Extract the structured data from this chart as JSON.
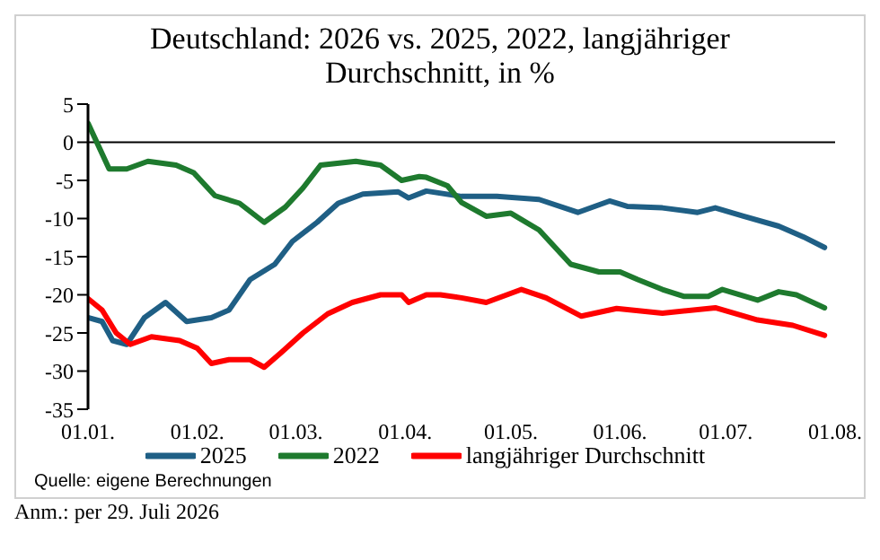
{
  "chart_data": {
    "type": "line",
    "title": "Deutschland: 2026 vs. 2025, 2022, langjähriger Durchschnitt, in %",
    "xlim": [
      "--01-01",
      "--08-01"
    ],
    "xticks": [
      {
        "value": "--01-01",
        "label": "01.01."
      },
      {
        "value": "--02-01",
        "label": "01.02."
      },
      {
        "value": "--03-01",
        "label": "01.03."
      },
      {
        "value": "--04-01",
        "label": "01.04."
      },
      {
        "value": "--05-01",
        "label": "01.05."
      },
      {
        "value": "--06-01",
        "label": "01.06."
      },
      {
        "value": "--07-01",
        "label": "01.07."
      },
      {
        "value": "--08-01",
        "label": "01.08."
      }
    ],
    "ylim": [
      -35,
      5
    ],
    "yticks": [
      -35,
      -30,
      -25,
      -20,
      -15,
      -10,
      -5,
      0,
      5
    ],
    "series": [
      {
        "name": "2025",
        "color": "#1f5f85",
        "x": [
          "--01-01",
          "--01-05",
          "--01-08",
          "--01-12",
          "--01-17",
          "--01-23",
          "--01-29",
          "--02-05",
          "--02-10",
          "--02-16",
          "--02-23",
          "--02-28",
          "--03-07",
          "--03-13",
          "--03-20",
          "--03-30",
          "--04-02",
          "--04-07",
          "--04-17",
          "--04-27",
          "--05-09",
          "--05-20",
          "--05-29",
          "--06-03",
          "--06-13",
          "--06-23",
          "--06-28",
          "--07-06",
          "--07-16",
          "--07-23",
          "--07-29"
        ],
        "values": [
          -23,
          -23.5,
          -26,
          -26.5,
          -23,
          -21,
          -23.5,
          -23,
          -22,
          -18,
          -16,
          -13,
          -10.5,
          -8,
          -6.8,
          -6.5,
          -7.3,
          -6.4,
          -7.1,
          -7.1,
          -7.5,
          -9.2,
          -7.7,
          -8.4,
          -8.6,
          -9.2,
          -8.6,
          -9.7,
          -11,
          -12.4,
          -13.8
        ]
      },
      {
        "name": "2022",
        "color": "#1e7a2e",
        "x": [
          "--01-01",
          "--01-07",
          "--01-12",
          "--01-18",
          "--01-26",
          "--01-31",
          "--02-06",
          "--02-13",
          "--02-20",
          "--02-26",
          "--03-03",
          "--03-08",
          "--03-18",
          "--03-25",
          "--03-31",
          "--04-05",
          "--04-07",
          "--04-13",
          "--04-17",
          "--04-24",
          "--05-01",
          "--05-09",
          "--05-18",
          "--05-26",
          "--06-01",
          "--06-06",
          "--06-13",
          "--06-19",
          "--06-26",
          "--06-30",
          "--07-10",
          "--07-16",
          "--07-21",
          "--07-29"
        ],
        "values": [
          2.5,
          -3.5,
          -3.5,
          -2.5,
          -3,
          -4,
          -7,
          -8,
          -10.5,
          -8.5,
          -6,
          -3,
          -2.5,
          -3,
          -5,
          -4.5,
          -4.6,
          -5.7,
          -7.9,
          -9.7,
          -9.3,
          -11.5,
          -16,
          -17,
          -17,
          -18,
          -19.3,
          -20.2,
          -20.2,
          -19.3,
          -20.7,
          -19.6,
          -20,
          -21.7
        ]
      },
      {
        "name": "langjähriger Durchschnitt",
        "color": "#ff0000",
        "x": [
          "--01-01",
          "--01-05",
          "--01-09",
          "--01-13",
          "--01-19",
          "--01-27",
          "--02-01",
          "--02-05",
          "--02-10",
          "--02-16",
          "--02-20",
          "--02-25",
          "--03-03",
          "--03-10",
          "--03-17",
          "--03-25",
          "--03-31",
          "--04-02",
          "--04-07",
          "--04-11",
          "--04-17",
          "--04-24",
          "--05-04",
          "--05-11",
          "--05-21",
          "--05-31",
          "--06-13",
          "--06-28",
          "--07-10",
          "--07-20",
          "--07-29"
        ],
        "values": [
          -20.5,
          -22,
          -25,
          -26.5,
          -25.5,
          -26,
          -27,
          -29,
          -28.5,
          -28.5,
          -29.5,
          -27.5,
          -25,
          -22.5,
          -21,
          -20,
          -20,
          -21,
          -20,
          -20,
          -20.4,
          -21,
          -19.3,
          -20.4,
          -22.8,
          -21.8,
          -22.4,
          -21.7,
          -23.3,
          -24,
          -25.3
        ]
      }
    ],
    "ref_lines": [
      {
        "axis": "y",
        "value": 0,
        "color": "#000000"
      }
    ],
    "legend": "bottom",
    "marker": "none",
    "line_style": "solid",
    "grid": false,
    "annotations": [
      "Quelle: eigene Berechnungen",
      "Anm.: per 29. Juli 2026"
    ]
  }
}
